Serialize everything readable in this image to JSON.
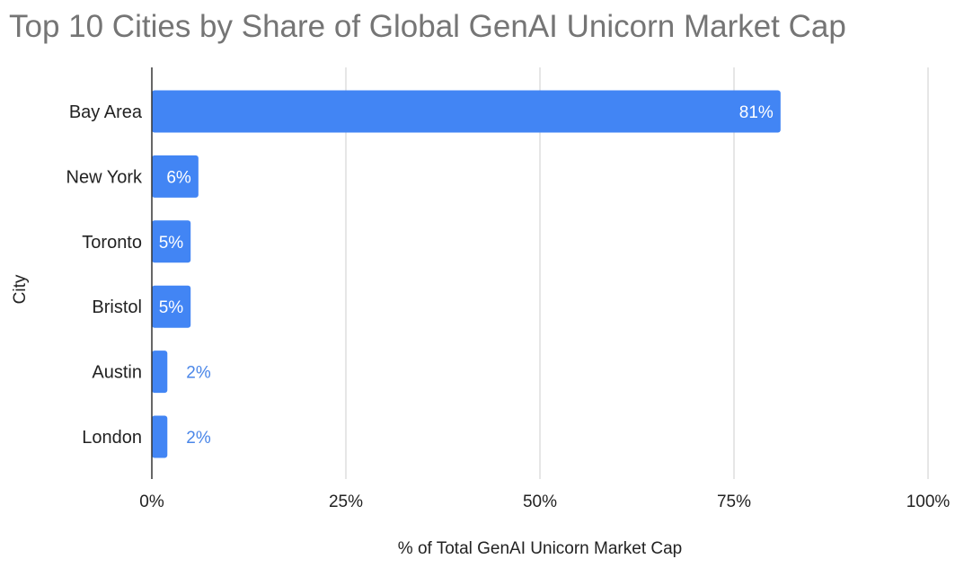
{
  "chart_data": {
    "type": "bar",
    "orientation": "horizontal",
    "title": "Top 10 Cities by Share of Global GenAI Unicorn Market Cap",
    "xlabel": "% of Total GenAI Unicorn Market Cap",
    "ylabel": "City",
    "categories": [
      "Bay Area",
      "New York",
      "Toronto",
      "Bristol",
      "Austin",
      "London"
    ],
    "values": [
      81,
      6,
      5,
      5,
      2,
      2
    ],
    "data_labels": [
      "81%",
      "6%",
      "5%",
      "5%",
      "2%",
      "2%"
    ],
    "xlim": [
      0,
      100
    ],
    "xticks": [
      0,
      25,
      50,
      75,
      100
    ],
    "xtick_labels": [
      "0%",
      "25%",
      "50%",
      "75%",
      "100%"
    ],
    "grid": "vertical",
    "legend": "none",
    "bar_color": "#4285f4"
  }
}
